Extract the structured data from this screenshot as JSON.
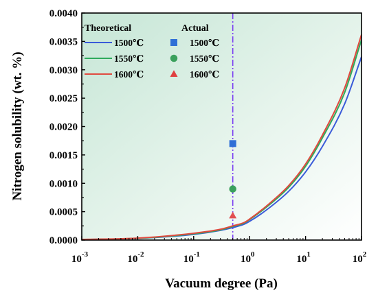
{
  "chart_data": {
    "type": "line",
    "xlabel": "Vacuum degree (Pa)",
    "ylabel": "Nitrogen solubility (wt. %)",
    "x_scale": "log",
    "xlim": [
      0.001,
      100
    ],
    "ylim": [
      0,
      0.004
    ],
    "x_ticks": [
      {
        "value": 0.001,
        "base": "10",
        "exp": "-3"
      },
      {
        "value": 0.01,
        "base": "10",
        "exp": "-2"
      },
      {
        "value": 0.1,
        "base": "10",
        "exp": "-1"
      },
      {
        "value": 1,
        "base": "10",
        "exp": "0"
      },
      {
        "value": 10,
        "base": "10",
        "exp": "1"
      },
      {
        "value": 100,
        "base": "10",
        "exp": "2"
      }
    ],
    "y_ticks": [
      "0.0000",
      "0.0005",
      "0.0010",
      "0.0015",
      "0.0020",
      "0.0025",
      "0.0030",
      "0.0035",
      "0.0040"
    ],
    "grid": false,
    "legend_headers": {
      "theoretical": "Theoretical",
      "actual": "Actual"
    },
    "legend_placement": "top-left",
    "reference_line": {
      "x": 0.5,
      "style": "dash-dot",
      "color": "#7b3ff2"
    },
    "series": [
      {
        "name": "1500℃",
        "kind": "theoretical",
        "color": "#3a5bd9",
        "x": [
          0.001,
          0.01,
          0.1,
          0.3,
          0.5,
          0.8,
          1,
          2,
          5,
          10,
          20,
          50,
          100
        ],
        "y": [
          1e-05,
          3e-05,
          0.0001,
          0.00017,
          0.00022,
          0.00028,
          0.00033,
          0.00053,
          0.00086,
          0.0012,
          0.00165,
          0.0024,
          0.00323
        ]
      },
      {
        "name": "1550℃",
        "kind": "theoretical",
        "color": "#2eaa5c",
        "x": [
          0.001,
          0.01,
          0.1,
          0.3,
          0.5,
          0.8,
          1,
          2,
          5,
          10,
          20,
          50,
          100
        ],
        "y": [
          1e-05,
          3.2e-05,
          0.00011,
          0.00018,
          0.00024,
          0.0003,
          0.00036,
          0.00058,
          0.00093,
          0.0013,
          0.0018,
          0.0026,
          0.00353
        ]
      },
      {
        "name": "1600℃",
        "kind": "theoretical",
        "color": "#e04a3f",
        "x": [
          0.001,
          0.01,
          0.1,
          0.3,
          0.5,
          0.8,
          1,
          2,
          5,
          10,
          20,
          50,
          100
        ],
        "y": [
          1.1e-05,
          3.5e-05,
          0.00012,
          0.00019,
          0.00025,
          0.00031,
          0.00037,
          0.0006,
          0.00096,
          0.00134,
          0.00185,
          0.00268,
          0.00362
        ]
      }
    ],
    "actual": [
      {
        "name": "1500℃",
        "marker": "square",
        "color": "#2f6fd6",
        "x": 0.5,
        "y": 0.0017
      },
      {
        "name": "1550℃",
        "marker": "circle",
        "color": "#3aa05c",
        "x": 0.5,
        "y": 0.0009
      },
      {
        "name": "1600℃",
        "marker": "triangle",
        "color": "#e25050",
        "legend_color": "#e04040",
        "x": 0.5,
        "y": 0.00043
      }
    ]
  }
}
